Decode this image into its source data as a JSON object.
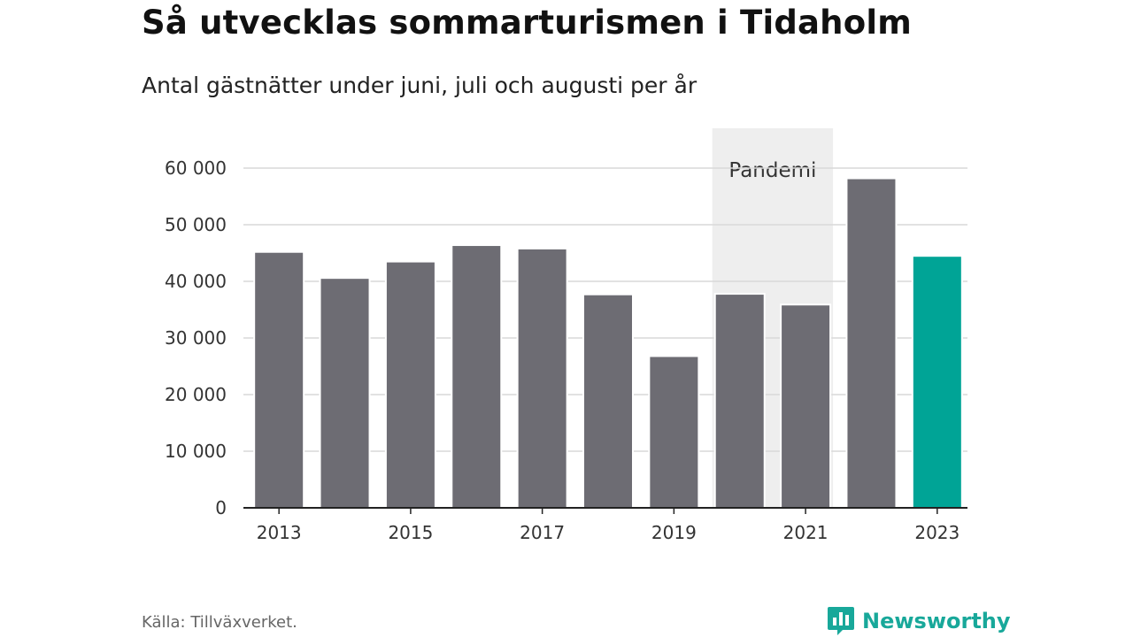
{
  "header": {
    "title": "Så utvecklas sommarturismen i Tidaholm",
    "subtitle": "Antal gästnätter under juni, juli och augusti per år"
  },
  "footer": {
    "source": "Källa: Tillväxverket.",
    "brand": "Newsworthy",
    "brand_color": "#18a89a"
  },
  "chart_data": {
    "type": "bar",
    "categories": [
      "2013",
      "2014",
      "2015",
      "2016",
      "2017",
      "2018",
      "2019",
      "2020",
      "2021",
      "2022",
      "2023"
    ],
    "values": [
      45200,
      40600,
      43500,
      46400,
      45800,
      37700,
      26800,
      37800,
      35900,
      58200,
      44500
    ],
    "tick_labels_x": [
      "2013",
      "",
      "2015",
      "",
      "2017",
      "",
      "2019",
      "",
      "2021",
      "",
      "2023"
    ],
    "y_ticks": [
      0,
      10000,
      20000,
      30000,
      40000,
      50000,
      60000
    ],
    "y_tick_labels": [
      "0",
      "10 000",
      "20 000",
      "30 000",
      "40 000",
      "50 000",
      "60 000"
    ],
    "ylim": [
      0,
      60000
    ],
    "grid": true,
    "colors": {
      "default": "#6d6c73",
      "highlight": "#00a496",
      "band": "#eeeeee"
    },
    "highlight_category": "2023",
    "annotation": {
      "label": "Pandemi",
      "from": "2020",
      "to": "2021"
    }
  }
}
